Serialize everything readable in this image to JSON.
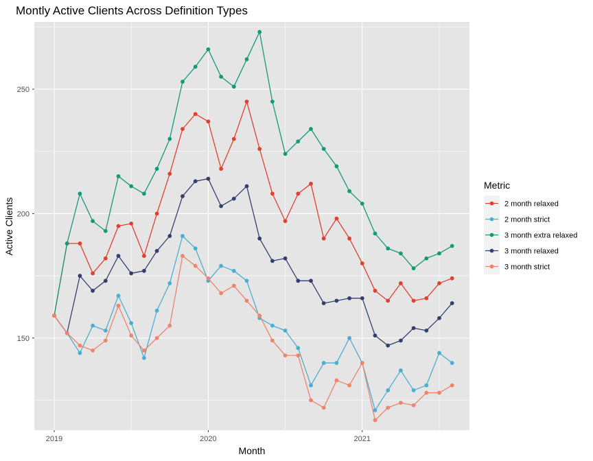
{
  "chart_data": {
    "type": "line",
    "title": "Montly Active Clients Across Definition Types",
    "xlabel": "Month",
    "ylabel": "Active Clients",
    "x": [
      "2019-01",
      "2019-02",
      "2019-03",
      "2019-04",
      "2019-05",
      "2019-06",
      "2019-07",
      "2019-08",
      "2019-09",
      "2019-10",
      "2019-11",
      "2019-12",
      "2020-01",
      "2020-02",
      "2020-03",
      "2020-04",
      "2020-05",
      "2020-06",
      "2020-07",
      "2020-08",
      "2020-09",
      "2020-10",
      "2020-11",
      "2020-12",
      "2021-01",
      "2021-02",
      "2021-03",
      "2021-04",
      "2021-05",
      "2021-06",
      "2021-07",
      "2021-08"
    ],
    "x_ticks": [
      "2019",
      "2020",
      "2021"
    ],
    "y_ticks": [
      150,
      200,
      250
    ],
    "ylim": [
      113,
      277
    ],
    "grid": true,
    "legend": {
      "title": "Metric",
      "placement": "right"
    },
    "series": [
      {
        "name": "2 month relaxed",
        "color": "#E0402F",
        "values": [
          159,
          188,
          188,
          176,
          182,
          195,
          196,
          183,
          200,
          216,
          234,
          240,
          237,
          218,
          230,
          245,
          226,
          208,
          197,
          208,
          212,
          190,
          198,
          190,
          180,
          169,
          165,
          172,
          165,
          166,
          172,
          174
        ]
      },
      {
        "name": "2 month strict",
        "color": "#4BAED0",
        "values": [
          159,
          152,
          144,
          155,
          153,
          167,
          156,
          142,
          161,
          172,
          191,
          186,
          173,
          179,
          177,
          173,
          158,
          155,
          153,
          146,
          131,
          140,
          140,
          150,
          140,
          121,
          129,
          137,
          129,
          131,
          144,
          140
        ]
      },
      {
        "name": "3 month extra relaxed",
        "color": "#149A78",
        "values": [
          159,
          188,
          208,
          197,
          193,
          215,
          211,
          208,
          218,
          230,
          253,
          259,
          266,
          255,
          251,
          262,
          273,
          245,
          224,
          229,
          234,
          226,
          219,
          209,
          204,
          192,
          186,
          184,
          178,
          182,
          184,
          187
        ]
      },
      {
        "name": "3 month relaxed",
        "color": "#33406D",
        "values": [
          159,
          152,
          175,
          169,
          173,
          183,
          176,
          177,
          185,
          191,
          207,
          213,
          214,
          203,
          206,
          211,
          190,
          181,
          182,
          173,
          173,
          164,
          165,
          166,
          166,
          151,
          147,
          149,
          154,
          153,
          158,
          164
        ]
      },
      {
        "name": "3 month strict",
        "color": "#EF836B",
        "values": [
          159,
          152,
          147,
          145,
          149,
          163,
          151,
          145,
          150,
          155,
          183,
          179,
          174,
          168,
          171,
          165,
          159,
          149,
          143,
          143,
          125,
          122,
          133,
          131,
          140,
          117,
          122,
          124,
          123,
          128,
          128,
          131
        ]
      }
    ]
  }
}
